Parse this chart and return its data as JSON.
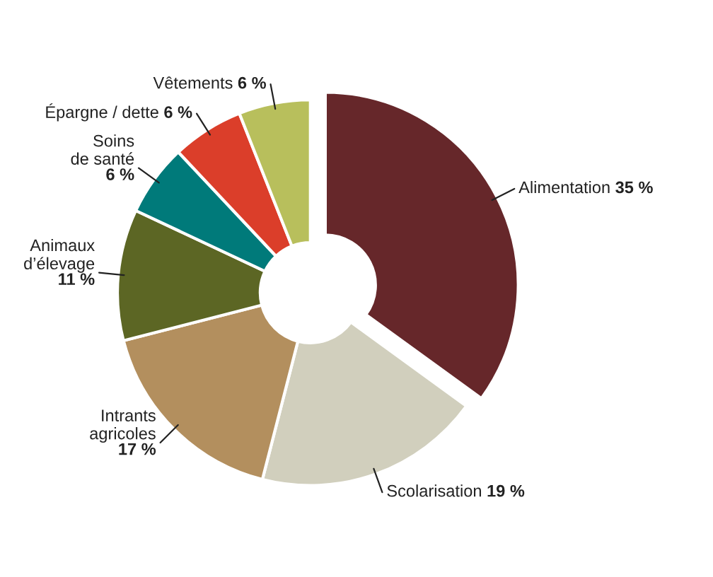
{
  "chart_data": {
    "type": "donut",
    "categories": [
      "Alimentation",
      "Scolarisation",
      "Intrants agricoles",
      "Animaux d’élevage",
      "Soins de santé",
      "Épargne / dette",
      "Vêtements"
    ],
    "values": [
      35,
      19,
      17,
      11,
      6,
      6,
      6
    ],
    "value_labels": [
      "35 %",
      "19 %",
      "17 %",
      "11 %",
      "6 %",
      "6 %",
      "6 %"
    ],
    "colors": [
      "#66272a",
      "#d1cfbd",
      "#b38f5e",
      "#5c6624",
      "#007a7a",
      "#db3e2a",
      "#b8bf5c"
    ],
    "legend": false
  }
}
